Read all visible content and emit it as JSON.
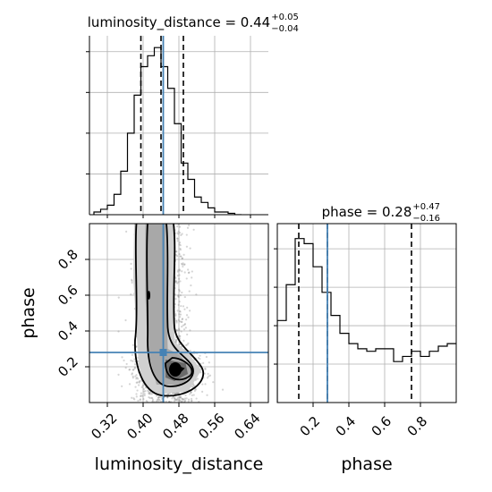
{
  "chart_data": {
    "type": "corner",
    "parameters": [
      "luminosity_distance",
      "phase"
    ],
    "truths": {
      "luminosity_distance": 0.445,
      "phase": 0.28
    },
    "panels": {
      "luminosity_distance_hist": {
        "type": "histogram",
        "title_main": "luminosity_distance = 0.44",
        "title_sup": "+0.05",
        "title_sub": "−0.04",
        "xlim": [
          0.28,
          0.68
        ],
        "bin_edges": [
          0.29,
          0.305,
          0.32,
          0.335,
          0.35,
          0.365,
          0.38,
          0.395,
          0.41,
          0.425,
          0.44,
          0.455,
          0.47,
          0.485,
          0.5,
          0.515,
          0.53,
          0.545,
          0.56,
          0.575,
          0.59,
          0.605,
          0.62
        ],
        "counts": [
          2,
          4,
          7,
          15,
          32,
          60,
          88,
          109,
          117,
          123,
          109,
          93,
          67,
          38,
          26,
          13,
          9,
          5,
          2,
          2,
          1,
          0
        ],
        "quantiles": [
          0.395,
          0.44,
          0.49
        ]
      },
      "phase_hist": {
        "type": "histogram",
        "title_main": "phase = 0.28",
        "title_sup": "+0.47",
        "title_sub": "−0.16",
        "xlim": [
          0.0,
          1.0
        ],
        "bin_edges": [
          0.0,
          0.05,
          0.1,
          0.15,
          0.2,
          0.25,
          0.3,
          0.35,
          0.4,
          0.45,
          0.5,
          0.55,
          0.6,
          0.65,
          0.7,
          0.75,
          0.8,
          0.85,
          0.9,
          0.95,
          1.0
        ],
        "counts": [
          32,
          46,
          64,
          62,
          53,
          43,
          34,
          27,
          23,
          21,
          20,
          21,
          21,
          16,
          18,
          20,
          18,
          20,
          22,
          23
        ],
        "quantiles": [
          0.12,
          0.28,
          0.75
        ]
      },
      "joint": {
        "type": "2d-contour",
        "xlim": [
          0.28,
          0.68
        ],
        "ylim": [
          0.0,
          1.0
        ],
        "peak": [
          0.475,
          0.18
        ]
      }
    },
    "axes": {
      "x_label_left": "luminosity_distance",
      "x_label_right": "phase",
      "y_label_joint": "phase",
      "x_ticks_left": [
        "0.32",
        "0.40",
        "0.48",
        "0.56",
        "0.64"
      ],
      "x_ticks_right": [
        "0.2",
        "0.4",
        "0.6",
        "0.8"
      ],
      "y_ticks_joint": [
        "0.2",
        "0.4",
        "0.6",
        "0.8"
      ]
    },
    "grid": true,
    "colors": {
      "truth": "#4682b4",
      "hist": "#000000",
      "scatter": "#7f7f7f"
    }
  }
}
